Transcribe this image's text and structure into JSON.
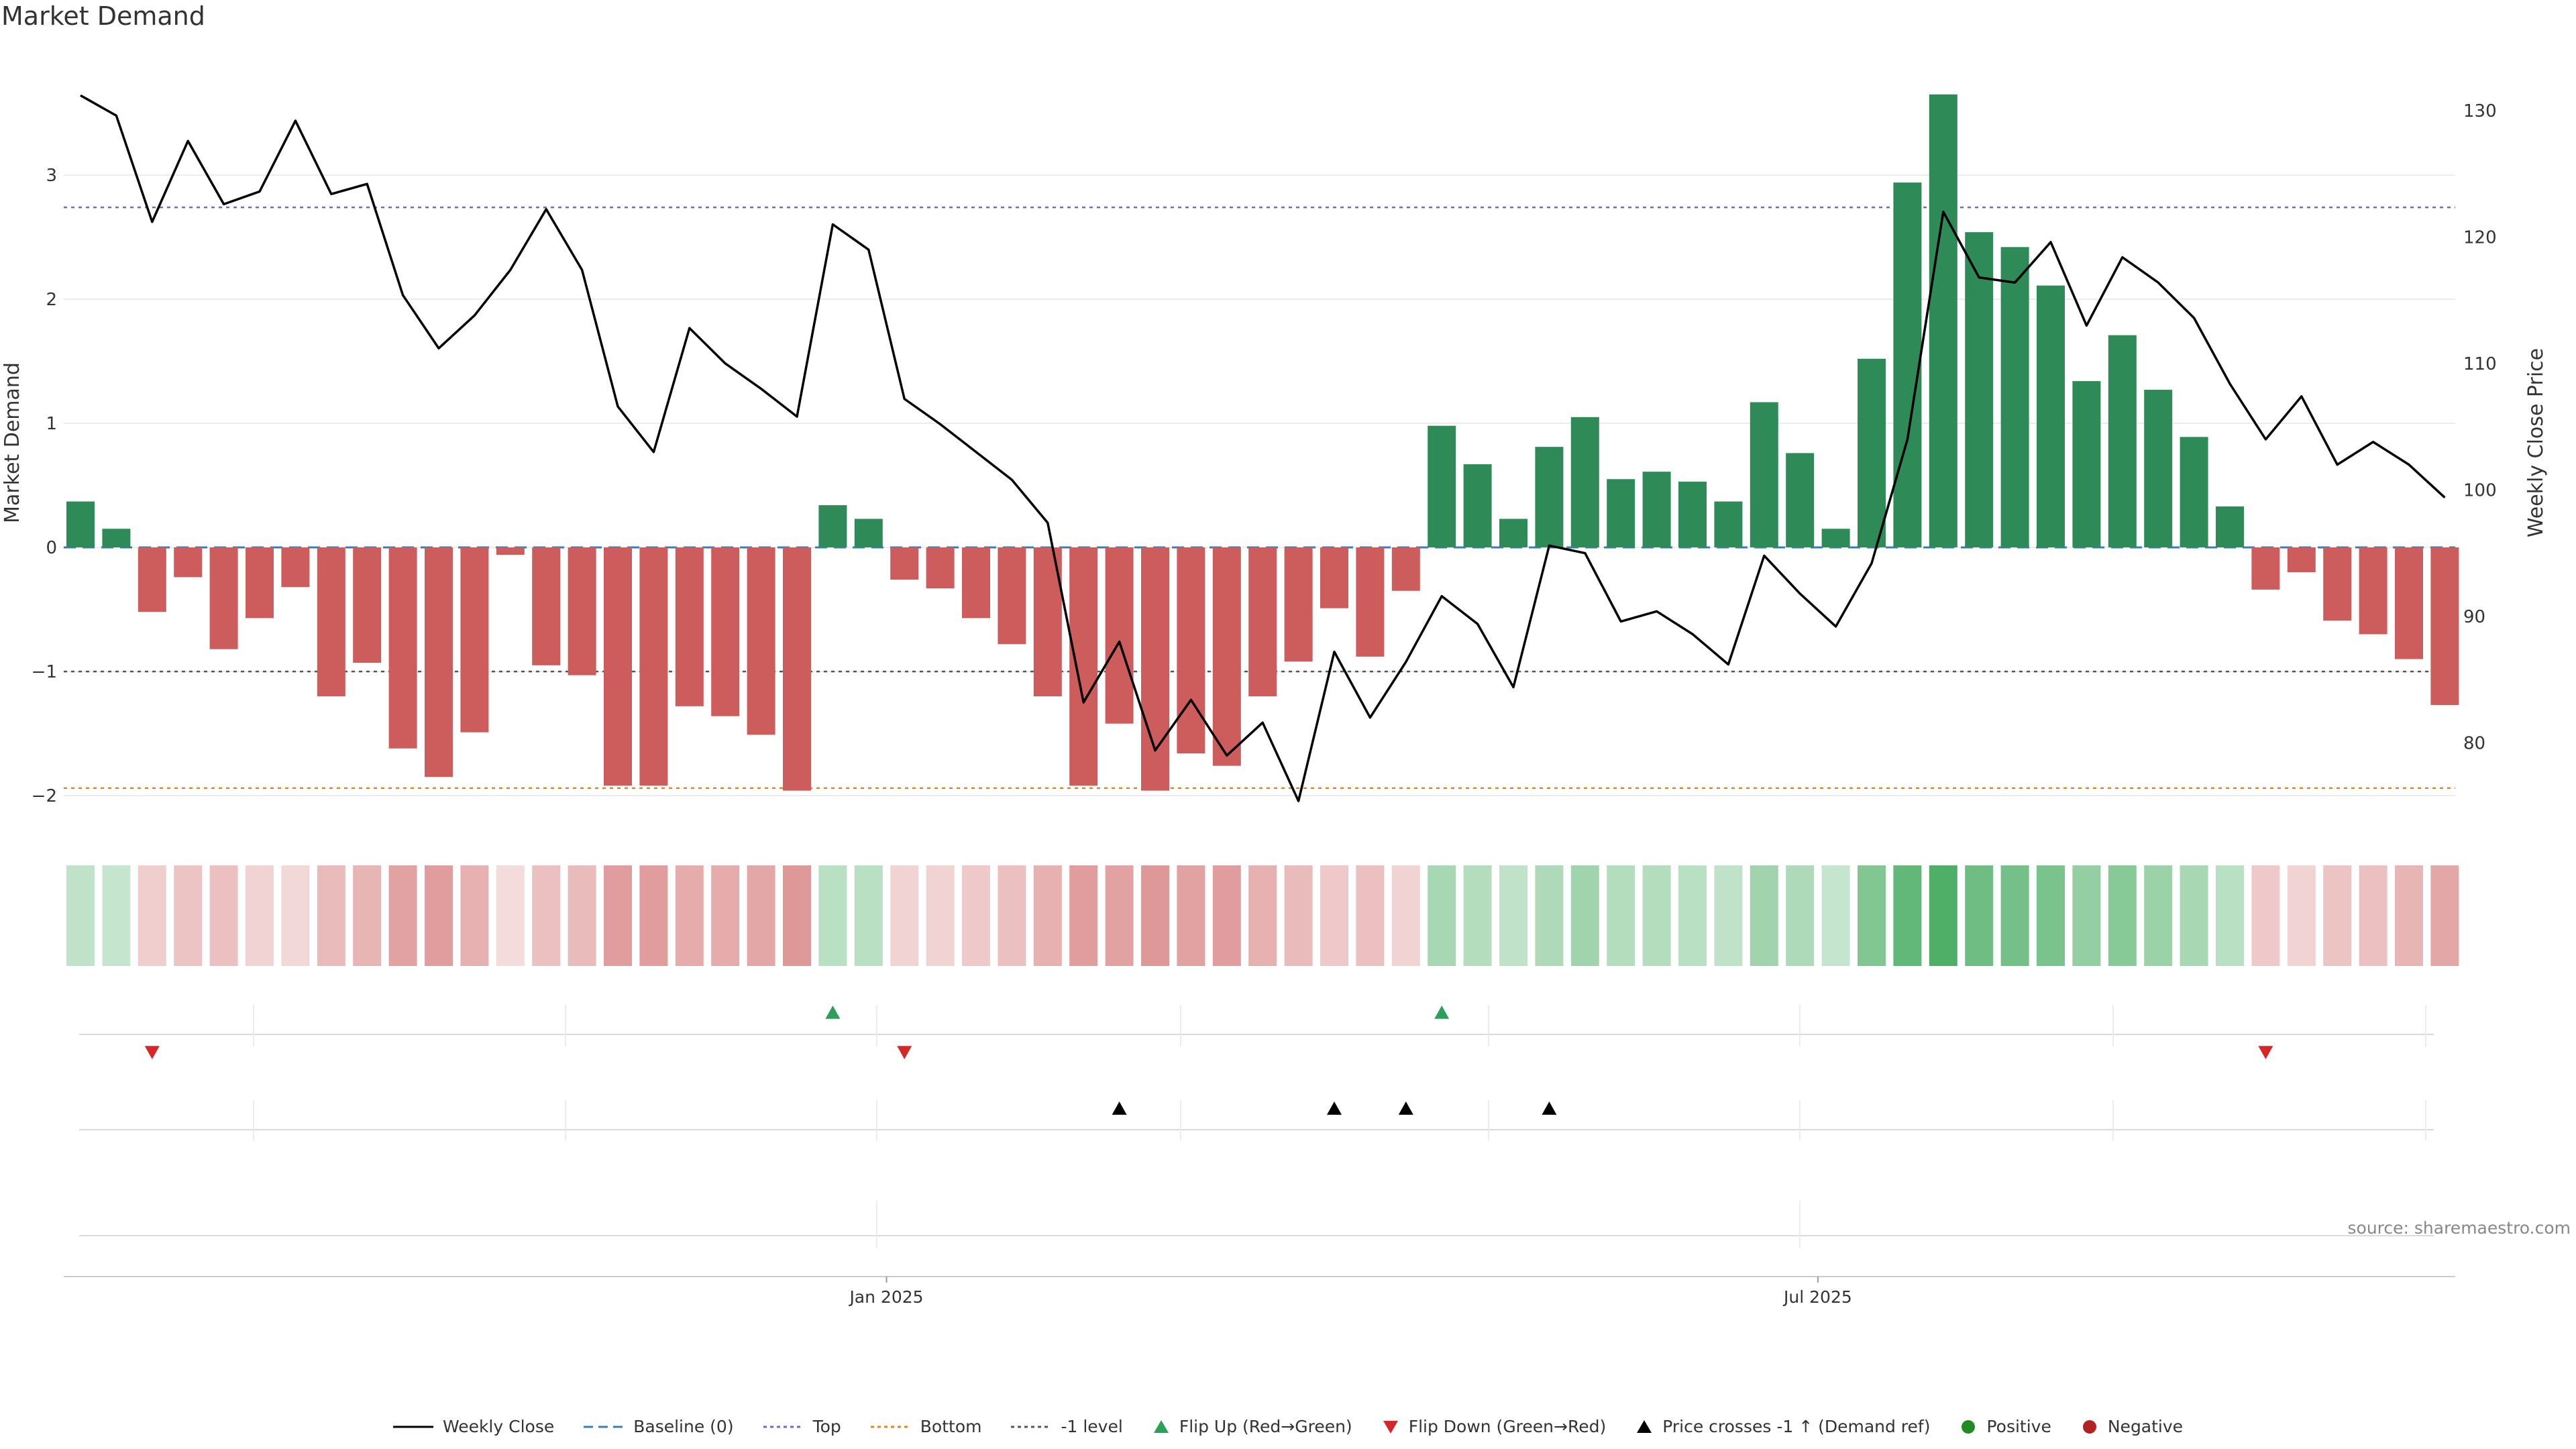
{
  "title": "Market Demand",
  "source": "source: sharemaestro.com",
  "legend": [
    {
      "label": "Weekly Close",
      "kind": "line",
      "color": "#000000"
    },
    {
      "label": "Baseline (0)",
      "kind": "dashed",
      "color": "#3a7bbf"
    },
    {
      "label": "Top",
      "kind": "dotted",
      "color": "#6b6bbf"
    },
    {
      "label": "Bottom",
      "kind": "dotted",
      "color": "#d08a2a"
    },
    {
      "label": "-1 level",
      "kind": "dotted",
      "color": "#555555"
    },
    {
      "label": "Flip Up (Red→Green)",
      "kind": "tri-up",
      "color": "#2ca05a"
    },
    {
      "label": "Flip Down (Green→Red)",
      "kind": "tri-down",
      "color": "#d62728"
    },
    {
      "label": "Price crosses -1 ↑ (Demand ref)",
      "kind": "tri-up",
      "color": "#000000"
    },
    {
      "label": "Positive",
      "kind": "dot",
      "color": "#228b22"
    },
    {
      "label": "Negative",
      "kind": "dot",
      "color": "#b22222"
    }
  ],
  "chart_data": {
    "type": "bar+line",
    "title": "Market Demand",
    "ylabel": "Market Demand",
    "y2label": "Weekly Close Price",
    "ylim": [
      -2.25,
      3.9
    ],
    "y2lim": [
      74.5,
      133.5
    ],
    "yticks": [
      -2,
      -1,
      0,
      1,
      2,
      3
    ],
    "y2ticks": [
      80,
      90,
      100,
      110,
      120,
      130
    ],
    "xticks": [
      {
        "label": "Jan 2025",
        "index": 22.5
      },
      {
        "label": "Jul 2025",
        "index": 48.5
      }
    ],
    "reference_lines": {
      "baseline": 0,
      "top": 2.74,
      "bottom": -1.94,
      "minus_one": -1
    },
    "colors": {
      "positive": "#2e8b57",
      "negative": "#cd5c5c",
      "price": "#000000"
    },
    "series": [
      {
        "name": "Market Demand",
        "type": "bar",
        "values": [
          0.37,
          0.15,
          -0.52,
          -0.24,
          -0.82,
          -0.57,
          -0.32,
          -1.2,
          -0.93,
          -1.62,
          -1.85,
          -1.49,
          -0.06,
          -0.95,
          -1.03,
          -1.92,
          -1.92,
          -1.28,
          -1.36,
          -1.51,
          -1.96,
          0.34,
          0.23,
          -0.26,
          -0.33,
          -0.57,
          -0.78,
          -1.2,
          -1.92,
          -1.42,
          -1.96,
          -1.66,
          -1.76,
          -1.2,
          -0.92,
          -0.49,
          -0.88,
          -0.35,
          0.98,
          0.67,
          0.23,
          0.81,
          1.05,
          0.55,
          0.61,
          0.53,
          0.37,
          1.17,
          0.76,
          0.15,
          1.52,
          2.94,
          3.65,
          2.54,
          2.42,
          2.11,
          1.34,
          1.71,
          1.27,
          0.89,
          0.33,
          -0.34,
          -0.2,
          -0.59,
          -0.7,
          -0.9,
          -1.27
        ]
      },
      {
        "name": "Weekly Close",
        "type": "line",
        "values": [
          131.2,
          129.6,
          121.2,
          127.6,
          122.6,
          123.6,
          129.2,
          123.4,
          124.2,
          115.4,
          111.2,
          113.8,
          117.4,
          122.2,
          117.4,
          106.6,
          103.0,
          112.8,
          110.0,
          108.0,
          105.8,
          121.0,
          119.0,
          107.2,
          105.2,
          103.0,
          100.8,
          97.4,
          83.2,
          88.0,
          79.4,
          83.4,
          79.0,
          81.6,
          75.4,
          87.2,
          82.0,
          86.4,
          91.6,
          89.4,
          84.4,
          95.6,
          95.0,
          89.6,
          90.4,
          88.6,
          86.2,
          94.8,
          91.8,
          89.2,
          94.2,
          104.0,
          122.0,
          116.8,
          116.4,
          119.6,
          113.0,
          118.4,
          116.4,
          113.6,
          108.4,
          104.0,
          107.4,
          102.0,
          103.8,
          102.0,
          99.4
        ]
      }
    ],
    "intensity_strip": [
      0.25,
      0.2,
      0.25,
      0.35,
      0.4,
      0.2,
      0.15,
      0.45,
      0.5,
      0.7,
      0.75,
      0.55,
      0.1,
      0.4,
      0.45,
      0.75,
      0.75,
      0.6,
      0.6,
      0.65,
      0.8,
      0.3,
      0.3,
      0.2,
      0.2,
      0.3,
      0.4,
      0.55,
      0.75,
      0.7,
      0.8,
      0.7,
      0.75,
      0.55,
      0.45,
      0.3,
      0.4,
      0.2,
      0.45,
      0.35,
      0.25,
      0.4,
      0.5,
      0.35,
      0.35,
      0.3,
      0.25,
      0.5,
      0.4,
      0.2,
      0.75,
      1.0,
      1.15,
      0.9,
      0.85,
      0.8,
      0.6,
      0.7,
      0.55,
      0.45,
      0.3,
      0.3,
      0.2,
      0.35,
      0.4,
      0.5,
      0.65
    ],
    "markers": {
      "flip_up": [
        21,
        38
      ],
      "flip_down": [
        2,
        23,
        61
      ],
      "price_cross": [
        29,
        35,
        37,
        41
      ]
    }
  }
}
